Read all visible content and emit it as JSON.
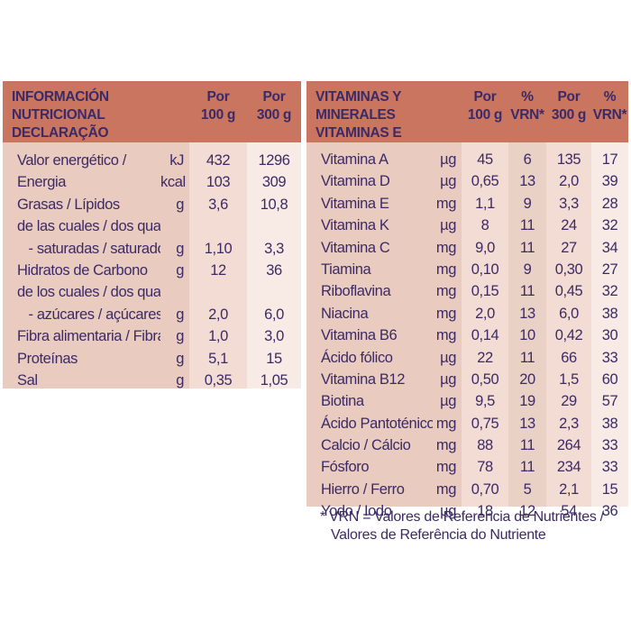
{
  "left": {
    "header": {
      "title_line1": "INFORMACIÓN NUTRICIONAL",
      "title_line2": "DECLARAÇÃO NUTRICIONAL",
      "col1_line1": "Por",
      "col1_line2": "100 g",
      "col2_line1": "Por",
      "col2_line2": "300 g"
    },
    "rows": [
      {
        "label": "Valor energético /",
        "unit": "kJ",
        "v100": "432",
        "v300": "1296"
      },
      {
        "label": "Energia",
        "unit": "kcal",
        "v100": "103",
        "v300": "309"
      },
      {
        "label": "Grasas / Lípidos",
        "unit": "g",
        "v100": "3,6",
        "v300": "10,8"
      },
      {
        "label": "de las cuales / dos quais",
        "unit": "",
        "v100": "",
        "v300": ""
      },
      {
        "label": "   - saturadas / saturados",
        "unit": "g",
        "v100": "1,10",
        "v300": "3,3"
      },
      {
        "label": "Hidratos de Carbono",
        "unit": "g",
        "v100": "12",
        "v300": "36"
      },
      {
        "label": "de los cuales / dos quais",
        "unit": "",
        "v100": "",
        "v300": ""
      },
      {
        "label": "   - azúcares / açúcares",
        "unit": "g",
        "v100": "2,0",
        "v300": "6,0"
      },
      {
        "label": "Fibra alimentaria / Fibra",
        "unit": "g",
        "v100": "1,0",
        "v300": "3,0"
      },
      {
        "label": "Proteínas",
        "unit": "g",
        "v100": "5,1",
        "v300": "15"
      },
      {
        "label": "Sal",
        "unit": "g",
        "v100": "0,35",
        "v300": "1,05"
      }
    ]
  },
  "right": {
    "header": {
      "title_line1": "VITAMINAS Y MINERALES",
      "title_line2": "VITAMINAS E MINERAIS",
      "col1_line1": "Por",
      "col1_line2": "100 g",
      "col2_line1": "%",
      "col2_line2": "VRN*",
      "col3_line1": "Por",
      "col3_line2": "300 g",
      "col4_line1": "%",
      "col4_line2": "VRN*"
    },
    "rows": [
      {
        "label": "Vitamina A",
        "unit": "µg",
        "v100": "45",
        "p100": "6",
        "v300": "135",
        "p300": "17"
      },
      {
        "label": "Vitamina D",
        "unit": "µg",
        "v100": "0,65",
        "p100": "13",
        "v300": "2,0",
        "p300": "39"
      },
      {
        "label": "Vitamina E",
        "unit": "mg",
        "v100": "1,1",
        "p100": "9",
        "v300": "3,3",
        "p300": "28"
      },
      {
        "label": "Vitamina K",
        "unit": "µg",
        "v100": "8",
        "p100": "11",
        "v300": "24",
        "p300": "32"
      },
      {
        "label": "Vitamina C",
        "unit": "mg",
        "v100": "9,0",
        "p100": "11",
        "v300": "27",
        "p300": "34"
      },
      {
        "label": "Tiamina",
        "unit": "mg",
        "v100": "0,10",
        "p100": "9",
        "v300": "0,30",
        "p300": "27"
      },
      {
        "label": "Riboflavina",
        "unit": "mg",
        "v100": "0,15",
        "p100": "11",
        "v300": "0,45",
        "p300": "32"
      },
      {
        "label": "Niacina",
        "unit": "mg",
        "v100": "2,0",
        "p100": "13",
        "v300": "6,0",
        "p300": "38"
      },
      {
        "label": "Vitamina B6",
        "unit": "mg",
        "v100": "0,14",
        "p100": "10",
        "v300": "0,42",
        "p300": "30"
      },
      {
        "label": "Ácido fólico",
        "unit": "µg",
        "v100": "22",
        "p100": "11",
        "v300": "66",
        "p300": "33"
      },
      {
        "label": "Vitamina B12",
        "unit": "µg",
        "v100": "0,50",
        "p100": "20",
        "v300": "1,5",
        "p300": "60"
      },
      {
        "label": "Biotina",
        "unit": "µg",
        "v100": "9,5",
        "p100": "19",
        "v300": "29",
        "p300": "57"
      },
      {
        "label": "Ácido Pantoténico",
        "unit": "mg",
        "v100": "0,75",
        "p100": "13",
        "v300": "2,3",
        "p300": "38"
      },
      {
        "label": "Calcio / Cálcio",
        "unit": "mg",
        "v100": "88",
        "p100": "11",
        "v300": "264",
        "p300": "33"
      },
      {
        "label": "Fósforo",
        "unit": "mg",
        "v100": "78",
        "p100": "11",
        "v300": "234",
        "p300": "33"
      },
      {
        "label": "Hierro / Ferro",
        "unit": "mg",
        "v100": "0,70",
        "p100": "5",
        "v300": "2,1",
        "p300": "15"
      },
      {
        "label": "Yodo / Iodo",
        "unit": "µg",
        "v100": "18",
        "p100": "12",
        "v300": "54",
        "p300": "36"
      }
    ]
  },
  "footnote": {
    "line1": "* VRN = Valores de Referencia de Nutrientes /",
    "line2": "Valores de Referência do Nutriente"
  },
  "colors": {
    "header_bg": "#c97560",
    "text": "#3b2a66",
    "cell_dark": "#eacbbf",
    "cell_light": "#f8ebe6"
  }
}
